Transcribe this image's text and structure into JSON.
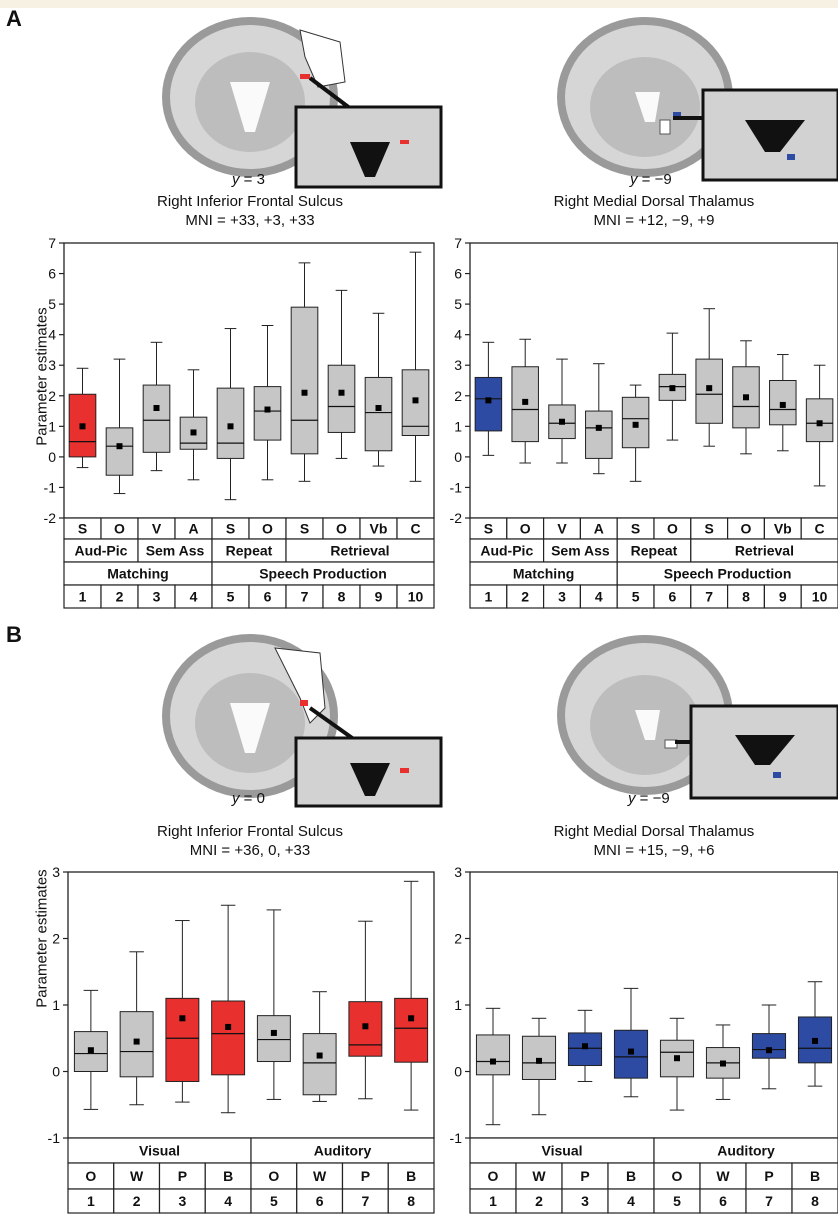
{
  "panels": {
    "A": {
      "letter": "A",
      "left": {
        "title": "Right Inferior Frontal Sulcus",
        "mni": "MNI = +33, +3, +33",
        "slice_axis": "y",
        "slice_value": "= 3"
      },
      "right": {
        "title": "Right Medial Dorsal Thalamus",
        "mni": "MNI = +12, −9, +9",
        "slice_axis": "y",
        "slice_value": "= −9"
      },
      "ylabel": "Parameter estimates"
    },
    "B": {
      "letter": "B",
      "left": {
        "title": "Right Inferior Frontal Sulcus",
        "mni": "MNI = +36, 0, +33",
        "slice_axis": "y",
        "slice_value": "= 0"
      },
      "right": {
        "title": "Right Medial Dorsal Thalamus",
        "mni": "MNI = +15, −9, +6",
        "slice_axis": "y",
        "slice_value": "= −9"
      },
      "ylabel": "Parameter estimates"
    }
  },
  "chart_data": [
    {
      "id": "A-left",
      "type": "boxplot",
      "ylim": [
        -2,
        7
      ],
      "yticks": [
        -2,
        -1,
        0,
        1,
        2,
        3,
        4,
        5,
        6,
        7
      ],
      "ylabel": "Parameter estimates",
      "highlight_color": "#e8312f",
      "table": {
        "rows": [
          [
            "S",
            "O",
            "V",
            "A",
            "S",
            "O",
            "S",
            "O",
            "Vb",
            "C"
          ],
          [
            {
              "t": "Aud-Pic",
              "span": 2
            },
            {
              "t": "Sem Ass",
              "span": 2
            },
            {
              "t": "Repeat",
              "span": 2
            },
            {
              "t": "Retrieval",
              "span": 4
            }
          ],
          [
            {
              "t": "Matching",
              "span": 4
            },
            {
              "t": "Speech Production",
              "span": 6
            }
          ],
          [
            "1",
            "2",
            "3",
            "4",
            "5",
            "6",
            "7",
            "8",
            "9",
            "10"
          ]
        ]
      },
      "boxes": [
        {
          "min": -0.35,
          "q1": 0.0,
          "median": 0.5,
          "q3": 2.05,
          "max": 2.9,
          "mean": 1.0,
          "highlight": true
        },
        {
          "min": -1.2,
          "q1": -0.6,
          "median": 0.35,
          "q3": 0.95,
          "max": 3.2,
          "mean": 0.35,
          "highlight": false
        },
        {
          "min": -0.45,
          "q1": 0.15,
          "median": 1.2,
          "q3": 2.35,
          "max": 3.75,
          "mean": 1.6,
          "highlight": false
        },
        {
          "min": -0.75,
          "q1": 0.25,
          "median": 0.45,
          "q3": 1.3,
          "max": 2.85,
          "mean": 0.8,
          "highlight": false
        },
        {
          "min": -1.4,
          "q1": -0.05,
          "median": 0.45,
          "q3": 2.25,
          "max": 4.2,
          "mean": 1.0,
          "highlight": false
        },
        {
          "min": -0.75,
          "q1": 0.55,
          "median": 1.5,
          "q3": 2.3,
          "max": 4.3,
          "mean": 1.55,
          "highlight": false
        },
        {
          "min": -0.8,
          "q1": 0.1,
          "median": 1.2,
          "q3": 4.9,
          "max": 6.35,
          "mean": 2.1,
          "highlight": false
        },
        {
          "min": -0.05,
          "q1": 0.8,
          "median": 1.65,
          "q3": 3.0,
          "max": 5.45,
          "mean": 2.1,
          "highlight": false
        },
        {
          "min": -0.3,
          "q1": 0.2,
          "median": 1.45,
          "q3": 2.6,
          "max": 4.7,
          "mean": 1.6,
          "highlight": false
        },
        {
          "min": -0.8,
          "q1": 0.7,
          "median": 1.0,
          "q3": 2.85,
          "max": 6.7,
          "mean": 1.85,
          "highlight": false
        }
      ]
    },
    {
      "id": "A-right",
      "type": "boxplot",
      "ylim": [
        -2,
        7
      ],
      "yticks": [
        -2,
        -1,
        0,
        1,
        2,
        3,
        4,
        5,
        6,
        7
      ],
      "ylabel": "",
      "highlight_color": "#2d4ba3",
      "table": {
        "rows": [
          [
            "S",
            "O",
            "V",
            "A",
            "S",
            "O",
            "S",
            "O",
            "Vb",
            "C"
          ],
          [
            {
              "t": "Aud-Pic",
              "span": 2
            },
            {
              "t": "Sem Ass",
              "span": 2
            },
            {
              "t": "Repeat",
              "span": 2
            },
            {
              "t": "Retrieval",
              "span": 4
            }
          ],
          [
            {
              "t": "Matching",
              "span": 4
            },
            {
              "t": "Speech Production",
              "span": 6
            }
          ],
          [
            "1",
            "2",
            "3",
            "4",
            "5",
            "6",
            "7",
            "8",
            "9",
            "10"
          ]
        ]
      },
      "boxes": [
        {
          "min": 0.05,
          "q1": 0.85,
          "median": 1.9,
          "q3": 2.6,
          "max": 3.75,
          "mean": 1.85,
          "highlight": true
        },
        {
          "min": -0.2,
          "q1": 0.5,
          "median": 1.55,
          "q3": 2.95,
          "max": 3.85,
          "mean": 1.8,
          "highlight": false
        },
        {
          "min": -0.2,
          "q1": 0.6,
          "median": 1.1,
          "q3": 1.7,
          "max": 3.2,
          "mean": 1.15,
          "highlight": false
        },
        {
          "min": -0.55,
          "q1": -0.05,
          "median": 0.95,
          "q3": 1.5,
          "max": 3.05,
          "mean": 0.95,
          "highlight": false
        },
        {
          "min": -0.8,
          "q1": 0.3,
          "median": 1.25,
          "q3": 1.95,
          "max": 2.35,
          "mean": 1.05,
          "highlight": false
        },
        {
          "min": 0.55,
          "q1": 1.85,
          "median": 2.3,
          "q3": 2.7,
          "max": 4.05,
          "mean": 2.25,
          "highlight": false
        },
        {
          "min": 0.35,
          "q1": 1.1,
          "median": 2.05,
          "q3": 3.2,
          "max": 4.85,
          "mean": 2.25,
          "highlight": false
        },
        {
          "min": 0.1,
          "q1": 0.95,
          "median": 1.65,
          "q3": 2.95,
          "max": 3.8,
          "mean": 1.95,
          "highlight": false
        },
        {
          "min": 0.2,
          "q1": 1.05,
          "median": 1.55,
          "q3": 2.5,
          "max": 3.35,
          "mean": 1.7,
          "highlight": false
        },
        {
          "min": -0.95,
          "q1": 0.5,
          "median": 1.1,
          "q3": 1.9,
          "max": 3.0,
          "mean": 1.1,
          "highlight": false
        }
      ]
    },
    {
      "id": "B-left",
      "type": "boxplot",
      "ylim": [
        -1,
        3
      ],
      "yticks": [
        -1,
        0,
        1,
        2,
        3
      ],
      "ylabel": "Parameter estimates",
      "highlight_color": "#e8312f",
      "table": {
        "rows": [
          [
            {
              "t": "Visual",
              "span": 4
            },
            {
              "t": "Auditory",
              "span": 4
            }
          ],
          [
            "O",
            "W",
            "P",
            "B",
            "O",
            "W",
            "P",
            "B"
          ],
          [
            "1",
            "2",
            "3",
            "4",
            "5",
            "6",
            "7",
            "8"
          ]
        ]
      },
      "boxes": [
        {
          "min": -0.57,
          "q1": 0.0,
          "median": 0.27,
          "q3": 0.6,
          "max": 1.22,
          "mean": 0.32,
          "highlight": false
        },
        {
          "min": -0.5,
          "q1": -0.08,
          "median": 0.3,
          "q3": 0.9,
          "max": 1.8,
          "mean": 0.45,
          "highlight": false
        },
        {
          "min": -0.46,
          "q1": -0.15,
          "median": 0.5,
          "q3": 1.1,
          "max": 2.27,
          "mean": 0.8,
          "highlight": true
        },
        {
          "min": -0.62,
          "q1": -0.05,
          "median": 0.57,
          "q3": 1.06,
          "max": 2.5,
          "mean": 0.67,
          "highlight": true
        },
        {
          "min": -0.42,
          "q1": 0.15,
          "median": 0.48,
          "q3": 0.84,
          "max": 2.43,
          "mean": 0.58,
          "highlight": false
        },
        {
          "min": -0.45,
          "q1": -0.35,
          "median": 0.13,
          "q3": 0.57,
          "max": 1.2,
          "mean": 0.24,
          "highlight": false
        },
        {
          "min": -0.41,
          "q1": 0.23,
          "median": 0.4,
          "q3": 1.05,
          "max": 2.26,
          "mean": 0.68,
          "highlight": true
        },
        {
          "min": -0.58,
          "q1": 0.14,
          "median": 0.65,
          "q3": 1.1,
          "max": 2.86,
          "mean": 0.8,
          "highlight": true
        }
      ]
    },
    {
      "id": "B-right",
      "type": "boxplot",
      "ylim": [
        -1,
        3
      ],
      "yticks": [
        -1,
        0,
        1,
        2,
        3
      ],
      "ylabel": "",
      "highlight_color": "#2d4ba3",
      "table": {
        "rows": [
          [
            {
              "t": "Visual",
              "span": 4
            },
            {
              "t": "Auditory",
              "span": 4
            }
          ],
          [
            "O",
            "W",
            "P",
            "B",
            "O",
            "W",
            "P",
            "B"
          ],
          [
            "1",
            "2",
            "3",
            "4",
            "5",
            "6",
            "7",
            "8"
          ]
        ]
      },
      "boxes": [
        {
          "min": -0.8,
          "q1": -0.05,
          "median": 0.15,
          "q3": 0.55,
          "max": 0.95,
          "mean": 0.15,
          "highlight": false
        },
        {
          "min": -0.65,
          "q1": -0.12,
          "median": 0.13,
          "q3": 0.53,
          "max": 0.8,
          "mean": 0.16,
          "highlight": false
        },
        {
          "min": -0.15,
          "q1": 0.09,
          "median": 0.35,
          "q3": 0.58,
          "max": 0.92,
          "mean": 0.38,
          "highlight": true
        },
        {
          "min": -0.38,
          "q1": -0.1,
          "median": 0.22,
          "q3": 0.62,
          "max": 1.25,
          "mean": 0.3,
          "highlight": true
        },
        {
          "min": -0.58,
          "q1": -0.08,
          "median": 0.29,
          "q3": 0.47,
          "max": 0.8,
          "mean": 0.2,
          "highlight": false
        },
        {
          "min": -0.42,
          "q1": -0.1,
          "median": 0.13,
          "q3": 0.36,
          "max": 0.7,
          "mean": 0.12,
          "highlight": false
        },
        {
          "min": -0.26,
          "q1": 0.2,
          "median": 0.33,
          "q3": 0.57,
          "max": 1.0,
          "mean": 0.32,
          "highlight": true
        },
        {
          "min": -0.22,
          "q1": 0.13,
          "median": 0.35,
          "q3": 0.82,
          "max": 1.35,
          "mean": 0.46,
          "highlight": true
        }
      ]
    }
  ]
}
